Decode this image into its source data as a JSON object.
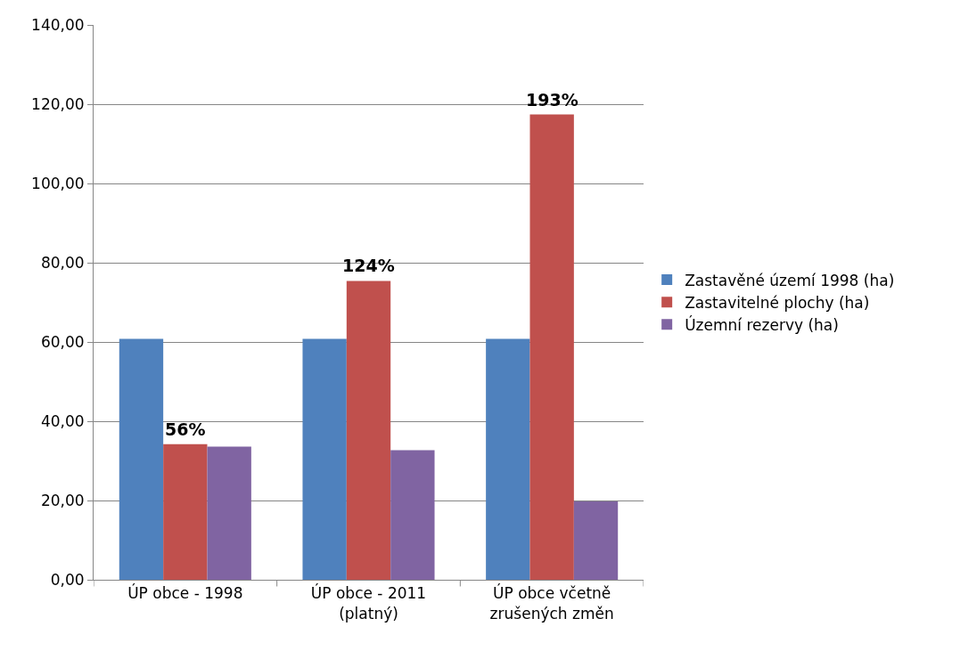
{
  "chart_data": {
    "type": "bar",
    "categories": [
      "ÚP obce - 1998",
      "ÚP obce - 2011 (platný)",
      "ÚP obce včetně zrušených změn"
    ],
    "series": [
      {
        "name": "Zastavěné území 1998 (ha)",
        "color": "#4f81bd",
        "values": [
          60.8,
          60.8,
          60.8
        ]
      },
      {
        "name": "Zastavitelné plochy (ha)",
        "color": "#c0504d",
        "values": [
          34.2,
          75.4,
          117.4
        ]
      },
      {
        "name": "Územní rezervy (ha)",
        "color": "#8064a2",
        "values": [
          33.6,
          32.7,
          19.8
        ]
      }
    ],
    "ylim": [
      0,
      140
    ],
    "yticks": [
      {
        "value": 0,
        "label": "0,00"
      },
      {
        "value": 20,
        "label": "20,00"
      },
      {
        "value": 40,
        "label": "40,00"
      },
      {
        "value": 60,
        "label": "60,00"
      },
      {
        "value": 80,
        "label": "80,00"
      },
      {
        "value": 100,
        "label": "100,00"
      },
      {
        "value": 120,
        "label": "120,00"
      },
      {
        "value": 140,
        "label": "140,00"
      }
    ],
    "grid": "y",
    "legend": "right",
    "annotations": [
      {
        "text": "56%",
        "x": "ÚP obce - 1998",
        "y": 34.2
      },
      {
        "text": "124%",
        "x": "ÚP obce - 2011 (platný)",
        "y": 75.4
      },
      {
        "text": "193%",
        "x": "ÚP obce včetně zrušených změn",
        "y": 117.4
      }
    ]
  }
}
